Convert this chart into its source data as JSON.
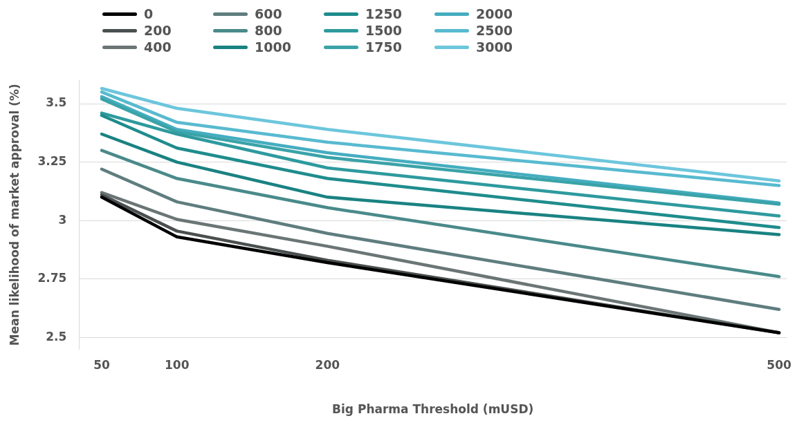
{
  "chart_data": {
    "type": "line",
    "xlabel": "Big Pharma Threshold (mUSD)",
    "ylabel": "Mean likelihood of market approval (%)",
    "x": [
      50,
      100,
      200,
      500
    ],
    "xlim": [
      35,
      505
    ],
    "xticks": [
      50,
      100,
      200,
      500
    ],
    "ylim": [
      2.45,
      3.6
    ],
    "yticks": [
      2.5,
      2.75,
      3,
      3.25,
      3.5
    ],
    "grid": "y",
    "legend": "top left",
    "marker": "none",
    "line_style": "solid",
    "series": [
      {
        "name": "0",
        "color": "#000000",
        "values": [
          3.1,
          2.93,
          2.82,
          2.52
        ]
      },
      {
        "name": "200",
        "color": "#4a4f4f",
        "values": [
          3.11,
          2.955,
          2.83,
          2.52
        ]
      },
      {
        "name": "400",
        "color": "#6b7575",
        "values": [
          3.12,
          3.005,
          2.89,
          2.52
        ]
      },
      {
        "name": "600",
        "color": "#5f7d7f",
        "values": [
          3.22,
          3.08,
          2.945,
          2.62
        ]
      },
      {
        "name": "800",
        "color": "#4a8a8a",
        "values": [
          3.3,
          3.18,
          3.055,
          2.76
        ]
      },
      {
        "name": "1000",
        "color": "#1a8282",
        "values": [
          3.37,
          3.25,
          3.1,
          2.94
        ]
      },
      {
        "name": "1250",
        "color": "#1f8c8c",
        "values": [
          3.45,
          3.31,
          3.18,
          2.97
        ]
      },
      {
        "name": "1500",
        "color": "#2e9a9e",
        "values": [
          3.46,
          3.37,
          3.225,
          3.02
        ]
      },
      {
        "name": "1750",
        "color": "#3aa3a8",
        "values": [
          3.52,
          3.38,
          3.27,
          3.07
        ]
      },
      {
        "name": "2000",
        "color": "#45adc0",
        "values": [
          3.53,
          3.39,
          3.29,
          3.075
        ]
      },
      {
        "name": "2500",
        "color": "#58bad0",
        "values": [
          3.55,
          3.42,
          3.335,
          3.15
        ]
      },
      {
        "name": "3000",
        "color": "#6cc6dc",
        "values": [
          3.565,
          3.48,
          3.39,
          3.17
        ]
      }
    ]
  }
}
